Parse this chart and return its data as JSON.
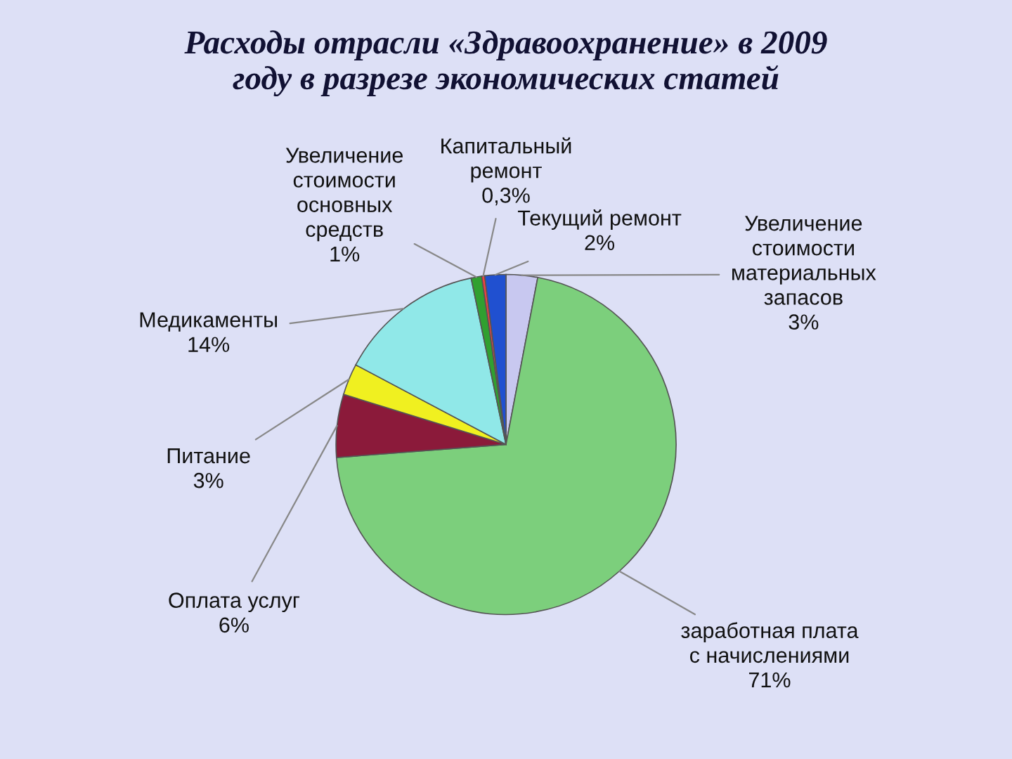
{
  "chart_data": {
    "type": "pie",
    "title": "Расходы отрасли «Здравоохранение» в 2009\nгоду в разрезе экономических статей",
    "categories": [
      "Увеличение\nстоимости\nматериальных\nзапасов",
      "заработная плата\nс начислениями",
      "Оплата услуг",
      "Питание",
      "Медикаменты",
      "Увеличение\nстоимости\nосновных\nсредств",
      "Капитальный\nремонт",
      "Текущий ремонт"
    ],
    "values": [
      3,
      71,
      6,
      3,
      14,
      1,
      0.3,
      2
    ],
    "value_labels": [
      "3%",
      "71%",
      "6%",
      "3%",
      "14%",
      "1%",
      "0,3%",
      "2%"
    ],
    "colors": [
      "#c8c8f0",
      "#7ccf7c",
      "#8b1a3a",
      "#f0f020",
      "#90e8e8",
      "#30a030",
      "#f04040",
      "#2050d0"
    ],
    "legend": false
  }
}
